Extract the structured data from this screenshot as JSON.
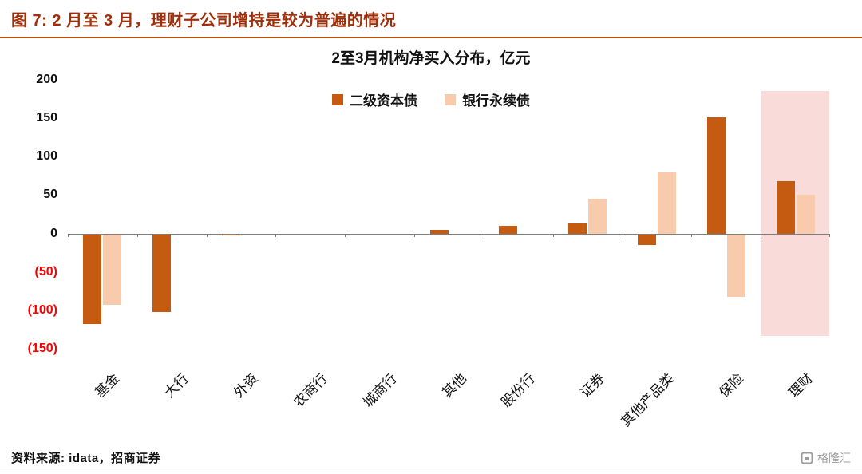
{
  "figure": {
    "caption": "图 7: 2 月至 3 月，理财子公司增持是较为普遍的情况",
    "source": "资料来源: idata，招商证券",
    "watermark": "格隆汇"
  },
  "theme": {
    "caption_color": "#9E2F0A",
    "caption_rule_color": "#B8540E",
    "series_dark": "#C55A11",
    "series_light": "#F8CBAD",
    "negative_tick_color": "#FF0000",
    "highlight_fill": "#F9DBD9",
    "axis_line_color": "#7F7F7F"
  },
  "chart_data": {
    "type": "bar",
    "title": "2至3月机构净买入分布，亿元",
    "categories": [
      "基金",
      "大行",
      "外资",
      "农商行",
      "城商行",
      "其他",
      "股份行",
      "证券",
      "其他产品类",
      "保险",
      "理财"
    ],
    "series": [
      {
        "name": "二级资本债",
        "color": "#C55A11",
        "values": [
          -118,
          -102,
          -3,
          -2,
          0,
          5,
          10,
          13,
          -15,
          151,
          68
        ]
      },
      {
        "name": "银行永续债",
        "color": "#F8CBAD",
        "values": [
          -93,
          0,
          0,
          -1,
          0,
          0,
          0,
          45,
          80,
          -83,
          50
        ]
      }
    ],
    "ylim": [
      -150,
      200
    ],
    "yticks": [
      200,
      150,
      100,
      50,
      0,
      -50,
      -100,
      -150
    ],
    "ytick_labels": [
      "200",
      "150",
      "100",
      "50",
      "0",
      "(50)",
      "(100)",
      "(150)"
    ],
    "legend_position": "top-center",
    "grid": false,
    "highlight": {
      "category": "理财",
      "category_index": 10,
      "y_top": 185,
      "y_bottom": -133
    }
  }
}
